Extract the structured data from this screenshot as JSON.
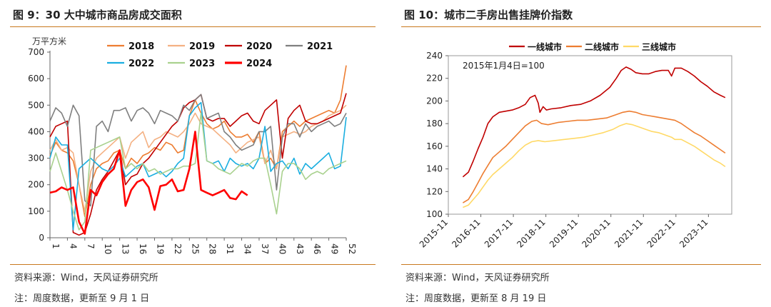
{
  "charts": [
    {
      "title": "图 9：30 大中城市商品房成交面积",
      "source": "资料来源：Wind，天风证券研究所",
      "note": "注：周度数据，更新至 9 月 1 日"
    },
    {
      "title": "图 10：城市二手房出售挂牌价指数",
      "source": "资料来源：Wind，天风证券研究所",
      "note": "注：周度数据，更新至 8 月 19 日"
    }
  ],
  "chart_data": [
    {
      "type": "line",
      "unit_label": "万平方米",
      "ylim": [
        0,
        700
      ],
      "y_ticks": [
        0,
        100,
        200,
        300,
        400,
        500,
        600,
        700
      ],
      "x_ticks": [
        1,
        4,
        7,
        10,
        13,
        16,
        19,
        22,
        25,
        28,
        31,
        34,
        37,
        40,
        43,
        46,
        49,
        52
      ],
      "xlim": [
        1,
        52
      ],
      "legend_position": "top",
      "series": [
        {
          "name": "2018",
          "color": "#ed7d31",
          "width": 1.6,
          "values": [
            310,
            360,
            330,
            320,
            290,
            200,
            80,
            200,
            260,
            280,
            290,
            320,
            330,
            260,
            300,
            280,
            310,
            320,
            340,
            330,
            360,
            350,
            320,
            330,
            460,
            520,
            470,
            430,
            410,
            420,
            440,
            400,
            380,
            380,
            390,
            360,
            400,
            280,
            300,
            260,
            400,
            420,
            440,
            420,
            440,
            450,
            460,
            470,
            480,
            470,
            520,
            650
          ]
        },
        {
          "name": "2019",
          "color": "#f4b183",
          "width": 1.6,
          "values": [
            330,
            370,
            330,
            340,
            320,
            200,
            100,
            250,
            300,
            320,
            340,
            360,
            380,
            300,
            360,
            380,
            400,
            340,
            370,
            380,
            400,
            390,
            380,
            400,
            430,
            470,
            430,
            420,
            410,
            390,
            370,
            350,
            320,
            340,
            360,
            370,
            380,
            280,
            330,
            260,
            380,
            390,
            400,
            390,
            400,
            420,
            430,
            440,
            460,
            470,
            480,
            500
          ]
        },
        {
          "name": "2020",
          "color": "#c00000",
          "width": 1.6,
          "values": [
            380,
            420,
            430,
            440,
            20,
            10,
            20,
            90,
            180,
            220,
            250,
            290,
            330,
            200,
            230,
            240,
            280,
            300,
            330,
            360,
            390,
            420,
            440,
            490,
            510,
            520,
            540,
            450,
            440,
            450,
            450,
            420,
            440,
            460,
            470,
            440,
            430,
            480,
            500,
            520,
            300,
            450,
            480,
            500,
            440,
            430,
            430,
            440,
            450,
            460,
            470,
            545
          ]
        },
        {
          "name": "2021",
          "color": "#7f7f7f",
          "width": 1.6,
          "values": [
            440,
            490,
            470,
            420,
            500,
            460,
            140,
            120,
            420,
            440,
            400,
            480,
            480,
            490,
            440,
            480,
            490,
            470,
            430,
            480,
            470,
            460,
            440,
            500,
            480,
            520,
            540,
            450,
            460,
            470,
            400,
            380,
            350,
            330,
            340,
            350,
            400,
            400,
            420,
            180,
            380,
            430,
            430,
            380,
            430,
            400,
            420,
            430,
            440,
            420,
            430,
            470
          ]
        },
        {
          "name": "2022",
          "color": "#1aaee0",
          "width": 1.6,
          "values": [
            300,
            380,
            350,
            350,
            30,
            260,
            280,
            300,
            280,
            260,
            250,
            270,
            300,
            230,
            250,
            270,
            280,
            230,
            240,
            250,
            230,
            250,
            280,
            300,
            460,
            490,
            510,
            290,
            280,
            290,
            250,
            300,
            280,
            270,
            280,
            260,
            300,
            420,
            250,
            280,
            290,
            260,
            300,
            240,
            280,
            260,
            280,
            300,
            320,
            260,
            270,
            455
          ]
        },
        {
          "name": "2023",
          "color": "#a9d18e",
          "width": 1.6,
          "values": [
            250,
            320,
            250,
            180,
            100,
            30,
            60,
            330,
            340,
            350,
            360,
            370,
            380,
            260,
            280,
            260,
            280,
            250,
            260,
            240,
            250,
            260,
            260,
            270,
            270,
            280,
            470,
            290,
            280,
            260,
            250,
            240,
            260,
            280,
            270,
            290,
            300,
            300,
            200,
            90,
            250,
            280,
            280,
            260,
            220,
            240,
            250,
            240,
            260,
            270,
            280,
            290
          ]
        },
        {
          "name": "2024",
          "color": "#ff0000",
          "width": 2.6,
          "values": [
            170,
            175,
            190,
            180,
            190,
            60,
            15,
            180,
            160,
            210,
            240,
            260,
            330,
            120,
            180,
            210,
            220,
            190,
            105,
            195,
            200,
            220,
            175,
            180,
            260,
            400,
            180,
            170,
            160,
            170,
            180,
            150,
            145,
            175,
            160
          ]
        }
      ]
    },
    {
      "type": "line",
      "annotation": "2015年1月4日=100",
      "ylim": [
        100,
        240
      ],
      "y_ticks": [
        100,
        120,
        140,
        160,
        180,
        200,
        220,
        240
      ],
      "x_ticks": [
        "2015-11",
        "2016-11",
        "2017-11",
        "2018-11",
        "2019-11",
        "2020-11",
        "2021-11",
        "2022-11",
        "2023-11"
      ],
      "legend_position": "top",
      "series": [
        {
          "name": "一线城市",
          "color": "#c00000",
          "width": 1.6,
          "points": [
            [
              2016.28,
              133
            ],
            [
              2016.45,
              137
            ],
            [
              2016.6,
              147
            ],
            [
              2016.75,
              158
            ],
            [
              2016.9,
              168
            ],
            [
              2017.05,
              180
            ],
            [
              2017.2,
              186
            ],
            [
              2017.4,
              190
            ],
            [
              2017.6,
              191
            ],
            [
              2017.8,
              192
            ],
            [
              2018.0,
              194
            ],
            [
              2018.2,
              197
            ],
            [
              2018.35,
              203
            ],
            [
              2018.5,
              205
            ],
            [
              2018.6,
              198
            ],
            [
              2018.65,
              190
            ],
            [
              2018.75,
              195
            ],
            [
              2018.85,
              192
            ],
            [
              2019.0,
              193
            ],
            [
              2019.3,
              194
            ],
            [
              2019.6,
              196
            ],
            [
              2019.9,
              197
            ],
            [
              2020.2,
              200
            ],
            [
              2020.5,
              205
            ],
            [
              2020.8,
              212
            ],
            [
              2021.0,
              220
            ],
            [
              2021.15,
              227
            ],
            [
              2021.3,
              230
            ],
            [
              2021.45,
              228
            ],
            [
              2021.6,
              225
            ],
            [
              2021.8,
              224
            ],
            [
              2022.0,
              224
            ],
            [
              2022.2,
              226
            ],
            [
              2022.4,
              227
            ],
            [
              2022.6,
              227
            ],
            [
              2022.7,
              222
            ],
            [
              2022.8,
              229
            ],
            [
              2023.0,
              229
            ],
            [
              2023.2,
              226
            ],
            [
              2023.4,
              222
            ],
            [
              2023.6,
              217
            ],
            [
              2023.8,
              213
            ],
            [
              2024.0,
              208
            ],
            [
              2024.2,
              205
            ],
            [
              2024.35,
              203
            ]
          ]
        },
        {
          "name": "二线城市",
          "color": "#ed7d31",
          "width": 1.6,
          "points": [
            [
              2016.28,
              110
            ],
            [
              2016.45,
              113
            ],
            [
              2016.6,
              120
            ],
            [
              2016.75,
              128
            ],
            [
              2016.9,
              136
            ],
            [
              2017.05,
              143
            ],
            [
              2017.2,
              150
            ],
            [
              2017.4,
              155
            ],
            [
              2017.6,
              160
            ],
            [
              2017.8,
              166
            ],
            [
              2018.0,
              172
            ],
            [
              2018.2,
              178
            ],
            [
              2018.4,
              182
            ],
            [
              2018.55,
              183
            ],
            [
              2018.7,
              180
            ],
            [
              2018.9,
              179
            ],
            [
              2019.2,
              181
            ],
            [
              2019.5,
              182
            ],
            [
              2019.8,
              183
            ],
            [
              2020.1,
              183
            ],
            [
              2020.4,
              184
            ],
            [
              2020.7,
              185
            ],
            [
              2021.0,
              188
            ],
            [
              2021.2,
              190
            ],
            [
              2021.4,
              191
            ],
            [
              2021.6,
              190
            ],
            [
              2021.8,
              188
            ],
            [
              2022.0,
              187
            ],
            [
              2022.2,
              186
            ],
            [
              2022.4,
              185
            ],
            [
              2022.6,
              184
            ],
            [
              2022.8,
              183
            ],
            [
              2023.0,
              180
            ],
            [
              2023.2,
              176
            ],
            [
              2023.4,
              172
            ],
            [
              2023.6,
              169
            ],
            [
              2023.8,
              165
            ],
            [
              2024.0,
              161
            ],
            [
              2024.2,
              157
            ],
            [
              2024.35,
              154
            ]
          ]
        },
        {
          "name": "三线城市",
          "color": "#ffd966",
          "width": 1.6,
          "points": [
            [
              2016.28,
              106
            ],
            [
              2016.45,
              108
            ],
            [
              2016.6,
              113
            ],
            [
              2016.75,
              118
            ],
            [
              2016.9,
              124
            ],
            [
              2017.05,
              130
            ],
            [
              2017.2,
              135
            ],
            [
              2017.4,
              140
            ],
            [
              2017.6,
              145
            ],
            [
              2017.8,
              150
            ],
            [
              2018.0,
              156
            ],
            [
              2018.2,
              161
            ],
            [
              2018.4,
              164
            ],
            [
              2018.6,
              165
            ],
            [
              2018.8,
              164
            ],
            [
              2019.1,
              165
            ],
            [
              2019.4,
              166
            ],
            [
              2019.7,
              167
            ],
            [
              2020.0,
              168
            ],
            [
              2020.3,
              170
            ],
            [
              2020.6,
              172
            ],
            [
              2020.9,
              175
            ],
            [
              2021.1,
              178
            ],
            [
              2021.3,
              180
            ],
            [
              2021.5,
              179
            ],
            [
              2021.7,
              177
            ],
            [
              2021.9,
              175
            ],
            [
              2022.1,
              173
            ],
            [
              2022.3,
              172
            ],
            [
              2022.5,
              170
            ],
            [
              2022.7,
              168
            ],
            [
              2022.8,
              166
            ],
            [
              2023.0,
              166
            ],
            [
              2023.2,
              163
            ],
            [
              2023.4,
              160
            ],
            [
              2023.6,
              156
            ],
            [
              2023.8,
              152
            ],
            [
              2024.0,
              148
            ],
            [
              2024.2,
              145
            ],
            [
              2024.35,
              142
            ]
          ]
        }
      ]
    }
  ]
}
